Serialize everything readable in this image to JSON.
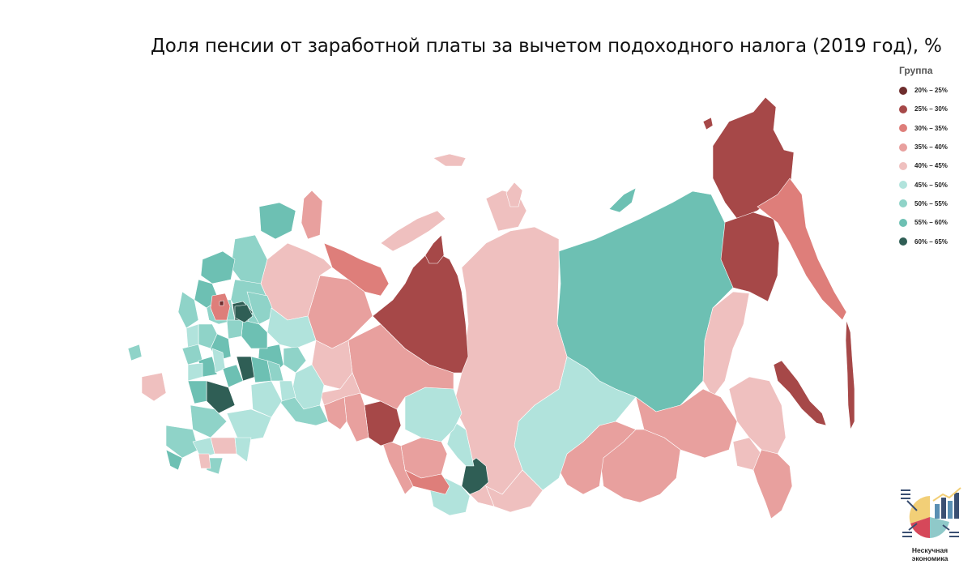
{
  "title": "Доля пенсии от заработной платы за вычетом подоходного налога (2019 год), %",
  "legend": {
    "title": "Группа",
    "items": [
      {
        "label": "20% – 25%",
        "color": "#6e2d2d"
      },
      {
        "label": "25% – 30%",
        "color": "#a64848"
      },
      {
        "label": "30% – 35%",
        "color": "#de7e7a"
      },
      {
        "label": "35% – 40%",
        "color": "#e8a09e"
      },
      {
        "label": "40% – 45%",
        "color": "#efc0bf"
      },
      {
        "label": "45% – 50%",
        "color": "#b1e3dc"
      },
      {
        "label": "50% – 55%",
        "color": "#8fd3c8"
      },
      {
        "label": "55% – 60%",
        "color": "#6dc0b3"
      },
      {
        "label": "60% – 65%",
        "color": "#2f5e55"
      }
    ]
  },
  "brand": {
    "line1": "Нескучная",
    "line2": "экономика",
    "colors": {
      "yellow": "#f2cf77",
      "red": "#d6485a",
      "blue": "#5a8fb3",
      "navy": "#3a4f72",
      "teal": "#8fc9c9"
    }
  }
}
